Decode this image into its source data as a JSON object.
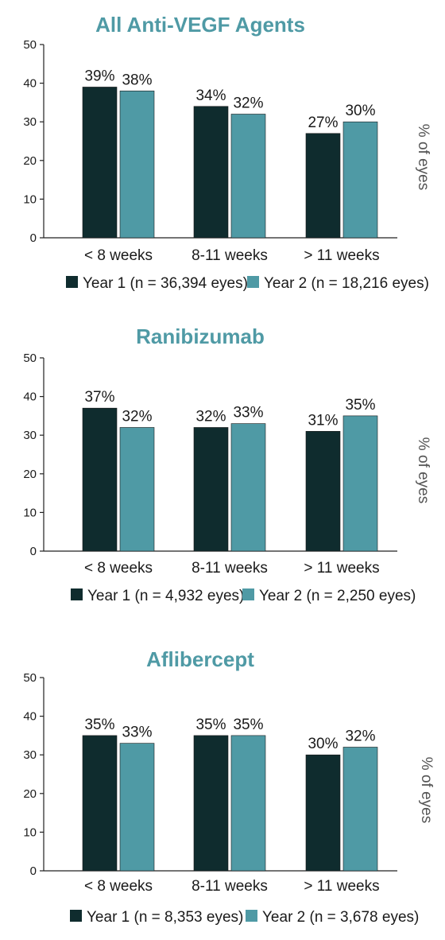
{
  "colors": {
    "year1": "#0f2c2e",
    "year2": "#4f9aa5",
    "title": "#4f9aa5"
  },
  "chart_data": [
    {
      "type": "bar",
      "title": "All Anti-VEGF Agents",
      "categories": [
        "< 8 weeks",
        "8-11 weeks",
        "> 11 weeks"
      ],
      "series": [
        {
          "name": "Year 1 (n = 36,394 eyes)",
          "values": [
            39,
            34,
            27
          ],
          "labels": [
            "39%",
            "34%",
            "27%"
          ]
        },
        {
          "name": "Year 2 (n = 18,216 eyes)",
          "values": [
            38,
            32,
            30
          ],
          "labels": [
            "38%",
            "32%",
            "30%"
          ]
        }
      ],
      "ylabel": "% of eyes",
      "ylim": [
        0,
        50
      ],
      "yticks": [
        "0",
        "10",
        "20",
        "30",
        "40",
        "50"
      ],
      "grid": false,
      "legend": "bottom"
    },
    {
      "type": "bar",
      "title": "Ranibizumab",
      "categories": [
        "< 8 weeks",
        "8-11 weeks",
        "> 11 weeks"
      ],
      "series": [
        {
          "name": "Year 1 (n = 4,932 eyes)",
          "values": [
            37,
            32,
            31
          ],
          "labels": [
            "37%",
            "32%",
            "31%"
          ]
        },
        {
          "name": "Year 2 (n = 2,250 eyes)",
          "values": [
            32,
            33,
            35
          ],
          "labels": [
            "32%",
            "33%",
            "35%"
          ]
        }
      ],
      "ylabel": "% of eyes",
      "ylim": [
        0,
        50
      ],
      "yticks": [
        "0",
        "10",
        "20",
        "30",
        "40",
        "50"
      ],
      "grid": false,
      "legend": "bottom"
    },
    {
      "type": "bar",
      "title": "Aflibercept",
      "categories": [
        "< 8 weeks",
        "8-11 weeks",
        "> 11 weeks"
      ],
      "series": [
        {
          "name": "Year 1 (n = 8,353 eyes)",
          "values": [
            35,
            35,
            30
          ],
          "labels": [
            "35%",
            "35%",
            "30%"
          ]
        },
        {
          "name": "Year 2 (n = 3,678 eyes)",
          "values": [
            33,
            35,
            32
          ],
          "labels": [
            "33%",
            "35%",
            "32%"
          ]
        }
      ],
      "ylabel": "% of eyes",
      "ylim": [
        0,
        50
      ],
      "yticks": [
        "0",
        "10",
        "20",
        "30",
        "40",
        "50"
      ],
      "grid": false,
      "legend": "bottom"
    }
  ]
}
